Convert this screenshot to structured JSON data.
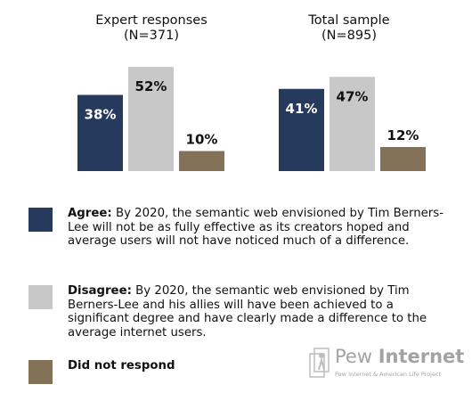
{
  "chart_data": {
    "type": "bar",
    "groups": [
      {
        "title": "Expert responses",
        "subtitle": "(N=371)",
        "values": [
          38,
          52,
          10
        ],
        "labels": [
          "38%",
          "52%",
          "10%"
        ]
      },
      {
        "title": "Total sample",
        "subtitle": "(N=895)",
        "values": [
          41,
          47,
          12
        ],
        "labels": [
          "41%",
          "47%",
          "12%"
        ]
      }
    ],
    "series": [
      {
        "name": "Agree",
        "color": "#263a5e"
      },
      {
        "name": "Disagree",
        "color": "#c8c8c8"
      },
      {
        "name": "Did not respond",
        "color": "#847258"
      }
    ],
    "ylim": [
      0,
      100
    ],
    "legend_placement": "bottom",
    "grid": false
  },
  "legend": [
    {
      "key": "Agree:",
      "text": "By 2020, the semantic web envisioned by Tim Berners-Lee will not be as fully effective as its creators hoped and average users will not have noticed much of a difference.",
      "color": "#263a5e"
    },
    {
      "key": "Disagree:",
      "text": "By 2020, the semantic web envisioned by Tim Berners-Lee and his allies will have been achieved to a significant degree and have clearly made a difference to the average internet users.",
      "color": "#c8c8c8"
    },
    {
      "key": "Did not respond",
      "text": "",
      "color": "#847258"
    }
  ],
  "logo": {
    "word_light": "Pew ",
    "word_bold": "Internet",
    "tagline": "Pew Internet & American Life Project"
  }
}
